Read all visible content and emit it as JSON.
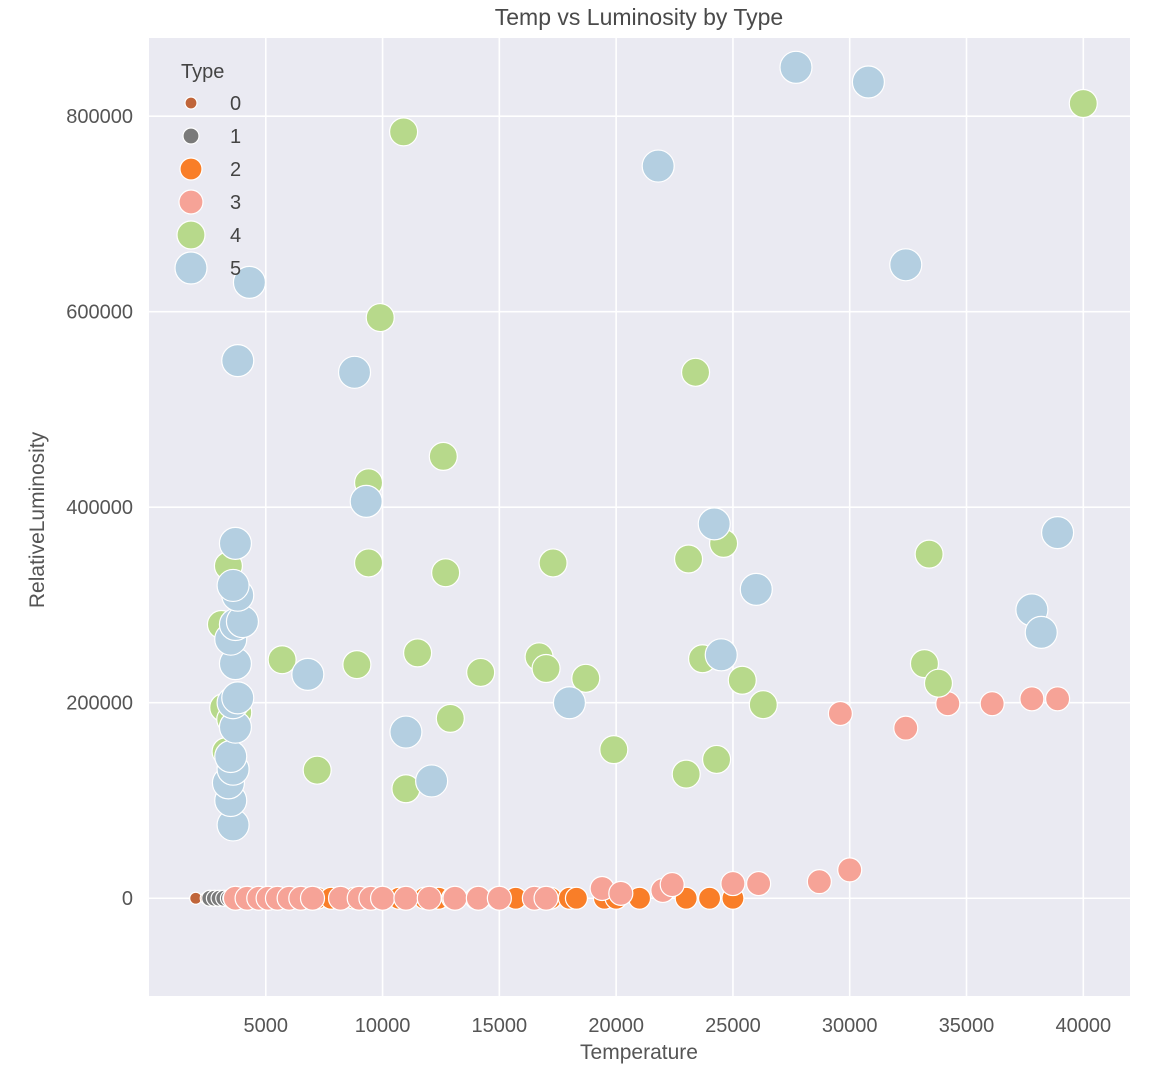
{
  "chart_data": {
    "type": "scatter",
    "title": "Temp vs Luminosity by Type",
    "xlabel": "Temperature",
    "ylabel": "RelativeLuminosity",
    "xlim": [
      0,
      42000
    ],
    "ylim": [
      -100000,
      880000
    ],
    "xticks": [
      5000,
      10000,
      15000,
      20000,
      25000,
      30000,
      35000,
      40000
    ],
    "yticks": [
      0,
      200000,
      400000,
      600000,
      800000
    ],
    "grid": true,
    "background": "#eaeaf2",
    "legend": {
      "title": "Type",
      "position": "top-left"
    },
    "series": [
      {
        "name": "0",
        "color": "#c0653a",
        "points": [
          [
            2000,
            0
          ],
          [
            2450,
            0
          ],
          [
            2650,
            0
          ],
          [
            3050,
            0
          ],
          [
            3150,
            0
          ]
        ]
      },
      {
        "name": "1",
        "color": "#7a7a7a",
        "points": [
          [
            2600,
            0
          ],
          [
            2800,
            0
          ],
          [
            3000,
            0
          ],
          [
            3200,
            0
          ],
          [
            3400,
            0
          ],
          [
            3500,
            0
          ]
        ]
      },
      {
        "name": "2",
        "color": "#f97e28",
        "points": [
          [
            7200,
            0
          ],
          [
            7800,
            0
          ],
          [
            8200,
            0
          ],
          [
            8800,
            0
          ],
          [
            9300,
            0
          ],
          [
            10000,
            0
          ],
          [
            10700,
            0
          ],
          [
            11000,
            0
          ],
          [
            11800,
            0
          ],
          [
            12400,
            0
          ],
          [
            13000,
            0
          ],
          [
            14000,
            0
          ],
          [
            14900,
            0
          ],
          [
            15700,
            0
          ],
          [
            16500,
            0
          ],
          [
            17200,
            0
          ],
          [
            18000,
            0
          ],
          [
            18300,
            0
          ],
          [
            19500,
            0
          ],
          [
            20000,
            0
          ],
          [
            21000,
            0
          ],
          [
            23000,
            0
          ],
          [
            24000,
            0
          ],
          [
            25000,
            0
          ]
        ]
      },
      {
        "name": "3",
        "color": "#f6a397",
        "points": [
          [
            3700,
            0
          ],
          [
            4200,
            0
          ],
          [
            4700,
            0
          ],
          [
            5100,
            0
          ],
          [
            5500,
            0
          ],
          [
            6000,
            0
          ],
          [
            6500,
            0
          ],
          [
            7000,
            0
          ],
          [
            8200,
            0
          ],
          [
            9000,
            0
          ],
          [
            9500,
            0
          ],
          [
            10000,
            0
          ],
          [
            11000,
            0
          ],
          [
            12000,
            0
          ],
          [
            13100,
            0
          ],
          [
            14100,
            0
          ],
          [
            15000,
            0
          ],
          [
            16500,
            0
          ],
          [
            17000,
            0
          ],
          [
            19400,
            10000
          ],
          [
            20200,
            5000
          ],
          [
            22000,
            8000
          ],
          [
            22400,
            14000
          ],
          [
            25000,
            15000
          ],
          [
            26100,
            15000
          ],
          [
            28700,
            17000
          ],
          [
            30000,
            29000
          ],
          [
            29600,
            189000
          ],
          [
            32400,
            174000
          ],
          [
            34200,
            199000
          ],
          [
            36100,
            199000
          ],
          [
            37800,
            204000
          ],
          [
            38900,
            204000
          ]
        ]
      },
      {
        "name": "4",
        "color": "#b7d98b",
        "points": [
          [
            3100,
            280000
          ],
          [
            3400,
            340000
          ],
          [
            3600,
            270000
          ],
          [
            3200,
            195000
          ],
          [
            3300,
            150000
          ],
          [
            3500,
            183000
          ],
          [
            3800,
            190000
          ],
          [
            5700,
            244000
          ],
          [
            7200,
            131000
          ],
          [
            8900,
            239000
          ],
          [
            9400,
            343000
          ],
          [
            9400,
            425000
          ],
          [
            9900,
            594000
          ],
          [
            10900,
            784000
          ],
          [
            11000,
            112000
          ],
          [
            11500,
            251000
          ],
          [
            12600,
            452000
          ],
          [
            12700,
            333000
          ],
          [
            12900,
            184000
          ],
          [
            14200,
            231000
          ],
          [
            16700,
            247000
          ],
          [
            17000,
            235000
          ],
          [
            17300,
            343000
          ],
          [
            18700,
            225000
          ],
          [
            19900,
            152000
          ],
          [
            23000,
            127000
          ],
          [
            23100,
            347000
          ],
          [
            23400,
            538000
          ],
          [
            23700,
            245000
          ],
          [
            24300,
            142000
          ],
          [
            24600,
            363000
          ],
          [
            25400,
            223000
          ],
          [
            26300,
            198000
          ],
          [
            33200,
            240000
          ],
          [
            33400,
            352000
          ],
          [
            33800,
            220000
          ],
          [
            40000,
            813000
          ]
        ]
      },
      {
        "name": "5",
        "color": "#b4cfe1",
        "points": [
          [
            3600,
            75000
          ],
          [
            3500,
            100000
          ],
          [
            3400,
            118000
          ],
          [
            3600,
            132000
          ],
          [
            3500,
            145000
          ],
          [
            3700,
            175000
          ],
          [
            3600,
            200000
          ],
          [
            3800,
            205000
          ],
          [
            3700,
            240000
          ],
          [
            3500,
            265000
          ],
          [
            3700,
            280000
          ],
          [
            4000,
            283000
          ],
          [
            3800,
            310000
          ],
          [
            3600,
            320000
          ],
          [
            3700,
            363000
          ],
          [
            3800,
            550000
          ],
          [
            4300,
            630000
          ],
          [
            6800,
            229000
          ],
          [
            8800,
            538000
          ],
          [
            9300,
            406000
          ],
          [
            11000,
            170000
          ],
          [
            12100,
            120000
          ],
          [
            18000,
            200000
          ],
          [
            21800,
            749000
          ],
          [
            24200,
            383000
          ],
          [
            24500,
            249000
          ],
          [
            26000,
            316000
          ],
          [
            27700,
            850000
          ],
          [
            30800,
            835000
          ],
          [
            32400,
            648000
          ],
          [
            37800,
            295000
          ],
          [
            38200,
            272000
          ],
          [
            38900,
            374000
          ]
        ]
      }
    ]
  }
}
